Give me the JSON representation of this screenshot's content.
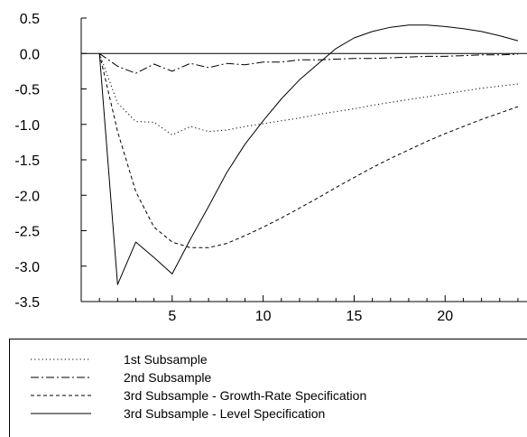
{
  "chart_data": {
    "type": "line",
    "title": "",
    "xlabel": "",
    "ylabel": "",
    "xlim": [
      0,
      24.5
    ],
    "ylim": [
      -3.5,
      0.5
    ],
    "xticks": [
      5,
      10,
      15,
      20
    ],
    "xtick_labels": [
      "5",
      "10",
      "15",
      "20"
    ],
    "yticks": [
      0.5,
      0.0,
      -0.5,
      -1.0,
      -1.5,
      -2.0,
      -2.5,
      -3.0,
      -3.5
    ],
    "ytick_labels": [
      "0.5",
      "0.0",
      "-0.5",
      "-1.0",
      "-1.5",
      "-2.0",
      "-2.5",
      "-3.0",
      "-3.5"
    ],
    "zero_line": true,
    "grid": false,
    "legend_position": "bottom",
    "x": [
      1,
      2,
      3,
      4,
      5,
      6,
      7,
      8,
      9,
      10,
      11,
      12,
      13,
      14,
      15,
      16,
      17,
      18,
      19,
      20,
      21,
      22,
      23,
      24
    ],
    "series": [
      {
        "name": "1st Subsample",
        "style": "dotted",
        "color": "#000000",
        "values": [
          0.0,
          -0.7,
          -0.96,
          -0.97,
          -1.15,
          -1.03,
          -1.1,
          -1.08,
          -1.03,
          -0.99,
          -0.95,
          -0.91,
          -0.86,
          -0.82,
          -0.78,
          -0.73,
          -0.69,
          -0.65,
          -0.61,
          -0.57,
          -0.53,
          -0.49,
          -0.46,
          -0.43
        ]
      },
      {
        "name": "2nd Subsample",
        "style": "dash-dot",
        "color": "#000000",
        "values": [
          0.0,
          -0.18,
          -0.28,
          -0.15,
          -0.25,
          -0.14,
          -0.2,
          -0.14,
          -0.16,
          -0.12,
          -0.12,
          -0.09,
          -0.09,
          -0.08,
          -0.07,
          -0.07,
          -0.06,
          -0.05,
          -0.04,
          -0.04,
          -0.03,
          -0.02,
          -0.02,
          -0.01
        ]
      },
      {
        "name": "3rd Subsample - Growth-Rate Specification",
        "style": "dashed",
        "color": "#000000",
        "values": [
          0.0,
          -1.1,
          -1.95,
          -2.45,
          -2.66,
          -2.74,
          -2.74,
          -2.68,
          -2.57,
          -2.45,
          -2.32,
          -2.18,
          -2.04,
          -1.89,
          -1.75,
          -1.61,
          -1.48,
          -1.36,
          -1.24,
          -1.13,
          -1.03,
          -0.93,
          -0.84,
          -0.75
        ]
      },
      {
        "name": "3rd Subsample - Level Specification",
        "style": "solid",
        "color": "#000000",
        "values": [
          0.0,
          -3.26,
          -2.66,
          -2.88,
          -3.11,
          -2.62,
          -2.16,
          -1.68,
          -1.28,
          -0.95,
          -0.64,
          -0.37,
          -0.15,
          0.07,
          0.22,
          0.31,
          0.37,
          0.4,
          0.4,
          0.38,
          0.35,
          0.31,
          0.25,
          0.18
        ]
      }
    ]
  }
}
